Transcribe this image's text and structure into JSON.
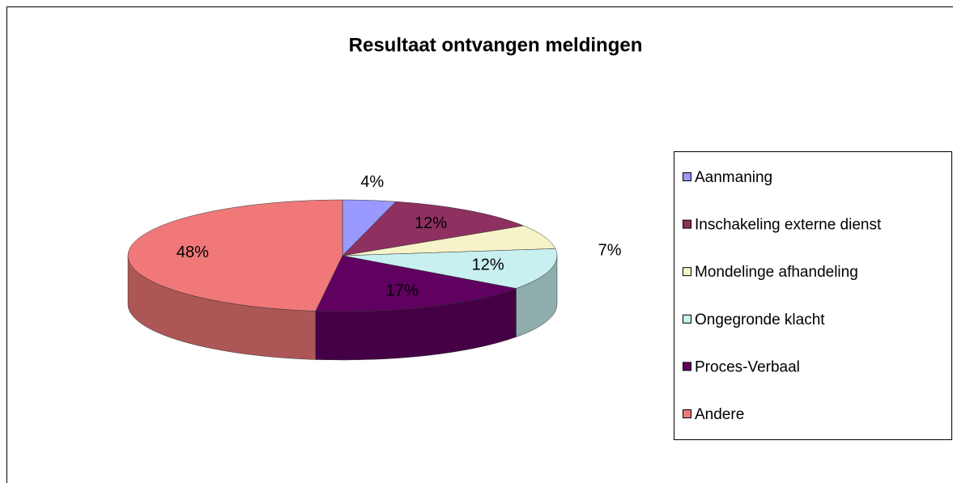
{
  "chart_data": {
    "type": "pie",
    "title": "Resultaat ontvangen meldingen",
    "categories": [
      "Aanmaning",
      "Inschakeling externe dienst",
      "Mondelinge afhandeling",
      "Ongegronde klacht",
      "Proces-Verbaal",
      "Andere"
    ],
    "values": [
      4,
      12,
      7,
      12,
      17,
      48
    ],
    "value_labels": [
      "4%",
      "12%",
      "7%",
      "12%",
      "17%",
      "48%"
    ],
    "colors": [
      "#9999ff",
      "#8e3060",
      "#f7f3c8",
      "#c8f0f0",
      "#600060",
      "#f07878"
    ],
    "legend": "right"
  }
}
